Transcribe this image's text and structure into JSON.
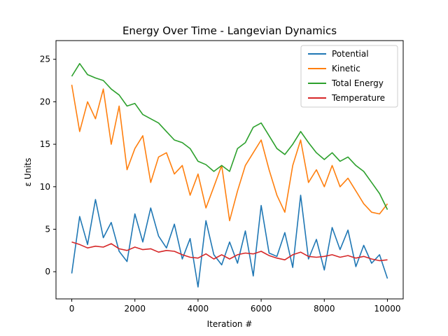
{
  "chart_data": {
    "type": "line",
    "title": "Energy Over Time - Langevian Dynamics",
    "xlabel": "Iteration #",
    "ylabel": "ε Units",
    "xlim": [
      -500,
      10500
    ],
    "ylim": [
      -3.2,
      27.2
    ],
    "xticks": [
      0,
      2000,
      4000,
      6000,
      8000,
      10000
    ],
    "yticks": [
      0,
      5,
      10,
      15,
      20,
      25
    ],
    "grid": false,
    "legend_position": "top-right",
    "x": [
      0,
      250,
      500,
      750,
      1000,
      1250,
      1500,
      1750,
      2000,
      2250,
      2500,
      2750,
      3000,
      3250,
      3500,
      3750,
      4000,
      4250,
      4500,
      4750,
      5000,
      5250,
      5500,
      5750,
      6000,
      6250,
      6500,
      6750,
      7000,
      7250,
      7500,
      7750,
      8000,
      8250,
      8500,
      8750,
      9000,
      9250,
      9500,
      9750,
      10000
    ],
    "series": [
      {
        "name": "Potential",
        "color": "#1f77b4",
        "values": [
          -0.2,
          6.5,
          3.2,
          8.5,
          4.0,
          5.8,
          2.4,
          1.2,
          6.8,
          3.5,
          7.5,
          4.2,
          2.8,
          5.6,
          1.5,
          3.9,
          -1.8,
          6.0,
          2.0,
          0.8,
          3.5,
          1.0,
          4.8,
          -0.5,
          7.8,
          2.2,
          1.8,
          4.6,
          0.5,
          9.0,
          1.5,
          3.8,
          0.2,
          5.2,
          2.6,
          4.9,
          0.6,
          3.1,
          1.0,
          2.0,
          -0.8
        ]
      },
      {
        "name": "Kinetic",
        "color": "#ff7f0e",
        "values": [
          22.0,
          16.5,
          20.0,
          18.0,
          21.5,
          15.0,
          19.5,
          12.0,
          14.5,
          16.0,
          10.5,
          13.5,
          14.0,
          11.5,
          12.5,
          9.0,
          11.5,
          7.5,
          10.0,
          12.5,
          6.0,
          9.5,
          12.5,
          14.0,
          15.5,
          12.0,
          9.0,
          7.0,
          12.5,
          15.5,
          10.5,
          12.0,
          10.0,
          12.5,
          10.0,
          11.0,
          9.5,
          8.0,
          7.0,
          6.8,
          8.0
        ]
      },
      {
        "name": "Total Energy",
        "color": "#2ca02c",
        "values": [
          23.0,
          24.5,
          23.2,
          22.8,
          22.5,
          21.5,
          20.8,
          19.5,
          19.8,
          18.5,
          18.0,
          17.5,
          16.5,
          15.5,
          15.2,
          14.5,
          13.0,
          12.6,
          11.8,
          12.5,
          11.8,
          14.5,
          15.2,
          17.0,
          17.5,
          16.0,
          14.5,
          13.8,
          15.0,
          16.5,
          15.2,
          14.0,
          13.2,
          14.0,
          13.0,
          13.5,
          12.5,
          11.8,
          10.5,
          9.2,
          7.3
        ]
      },
      {
        "name": "Temperature",
        "color": "#d62728",
        "values": [
          3.5,
          3.2,
          2.8,
          3.0,
          2.9,
          3.3,
          2.7,
          2.5,
          2.9,
          2.6,
          2.7,
          2.3,
          2.5,
          2.4,
          2.0,
          1.7,
          1.6,
          2.1,
          1.5,
          2.0,
          1.5,
          2.0,
          2.2,
          2.1,
          2.4,
          1.9,
          1.6,
          1.4,
          2.0,
          2.3,
          1.8,
          1.7,
          1.8,
          2.0,
          1.7,
          1.9,
          1.6,
          1.8,
          1.5,
          1.3,
          1.4
        ]
      }
    ]
  }
}
